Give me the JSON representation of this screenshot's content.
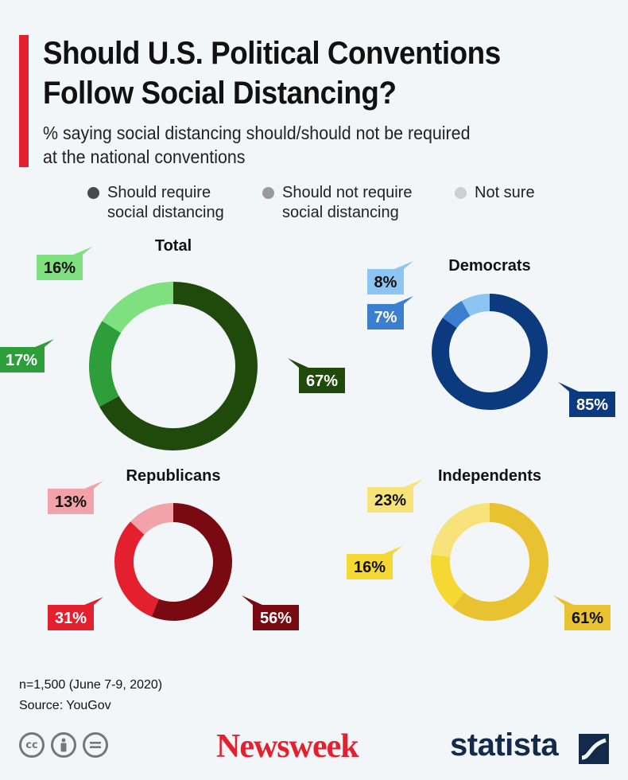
{
  "header": {
    "title_line1": "Should U.S. Political Conventions",
    "title_line2": "Follow Social Distancing?",
    "subtitle_line1": "% saying social distancing should/should not be required",
    "subtitle_line2": "at the national conventions"
  },
  "legend": [
    {
      "label": "Should require\nsocial distancing",
      "color": "#4a4a4a"
    },
    {
      "label": "Should not require\nsocial distancing",
      "color": "#9a9a9a"
    },
    {
      "label": "Not sure",
      "color": "#cfcfcf"
    }
  ],
  "chart_data": [
    {
      "type": "pie",
      "title": "Total",
      "categories": [
        "Should require social distancing",
        "Should not require social distancing",
        "Not sure"
      ],
      "values": [
        67,
        17,
        16
      ],
      "labels": [
        "67%",
        "17%",
        "16%"
      ],
      "colors": [
        "#1f4a0c",
        "#2e9e3a",
        "#7fe07f"
      ],
      "label_text_colors": [
        "#ffffff",
        "#ffffff",
        "#111111"
      ]
    },
    {
      "type": "pie",
      "title": "Democrats",
      "categories": [
        "Should require social distancing",
        "Should not require social distancing",
        "Not sure"
      ],
      "values": [
        85,
        7,
        8
      ],
      "labels": [
        "85%",
        "7%",
        "8%"
      ],
      "colors": [
        "#0c3a7e",
        "#3a7fd0",
        "#8cc4f2"
      ],
      "label_text_colors": [
        "#ffffff",
        "#ffffff",
        "#111111"
      ]
    },
    {
      "type": "pie",
      "title": "Republicans",
      "categories": [
        "Should require social distancing",
        "Should not require social distancing",
        "Not sure"
      ],
      "values": [
        56,
        31,
        13
      ],
      "labels": [
        "56%",
        "31%",
        "13%"
      ],
      "colors": [
        "#7a0a12",
        "#e5202e",
        "#f2a3aa"
      ],
      "label_text_colors": [
        "#ffffff",
        "#ffffff",
        "#111111"
      ]
    },
    {
      "type": "pie",
      "title": "Independents",
      "categories": [
        "Should require social distancing",
        "Should not require social distancing",
        "Not sure"
      ],
      "values": [
        61,
        16,
        23
      ],
      "labels": [
        "61%",
        "16%",
        "23%"
      ],
      "colors": [
        "#e8c231",
        "#f5d832",
        "#f8e27a"
      ],
      "label_text_colors": [
        "#111111",
        "#111111",
        "#111111"
      ]
    }
  ],
  "footnote": {
    "line1": "n=1,500 (June 7-9, 2020)",
    "line2": "Source: YouGov"
  },
  "footer": {
    "cc_icons": [
      "cc",
      "by",
      "nd"
    ],
    "newsweek": "Newsweek",
    "statista": "statista"
  }
}
